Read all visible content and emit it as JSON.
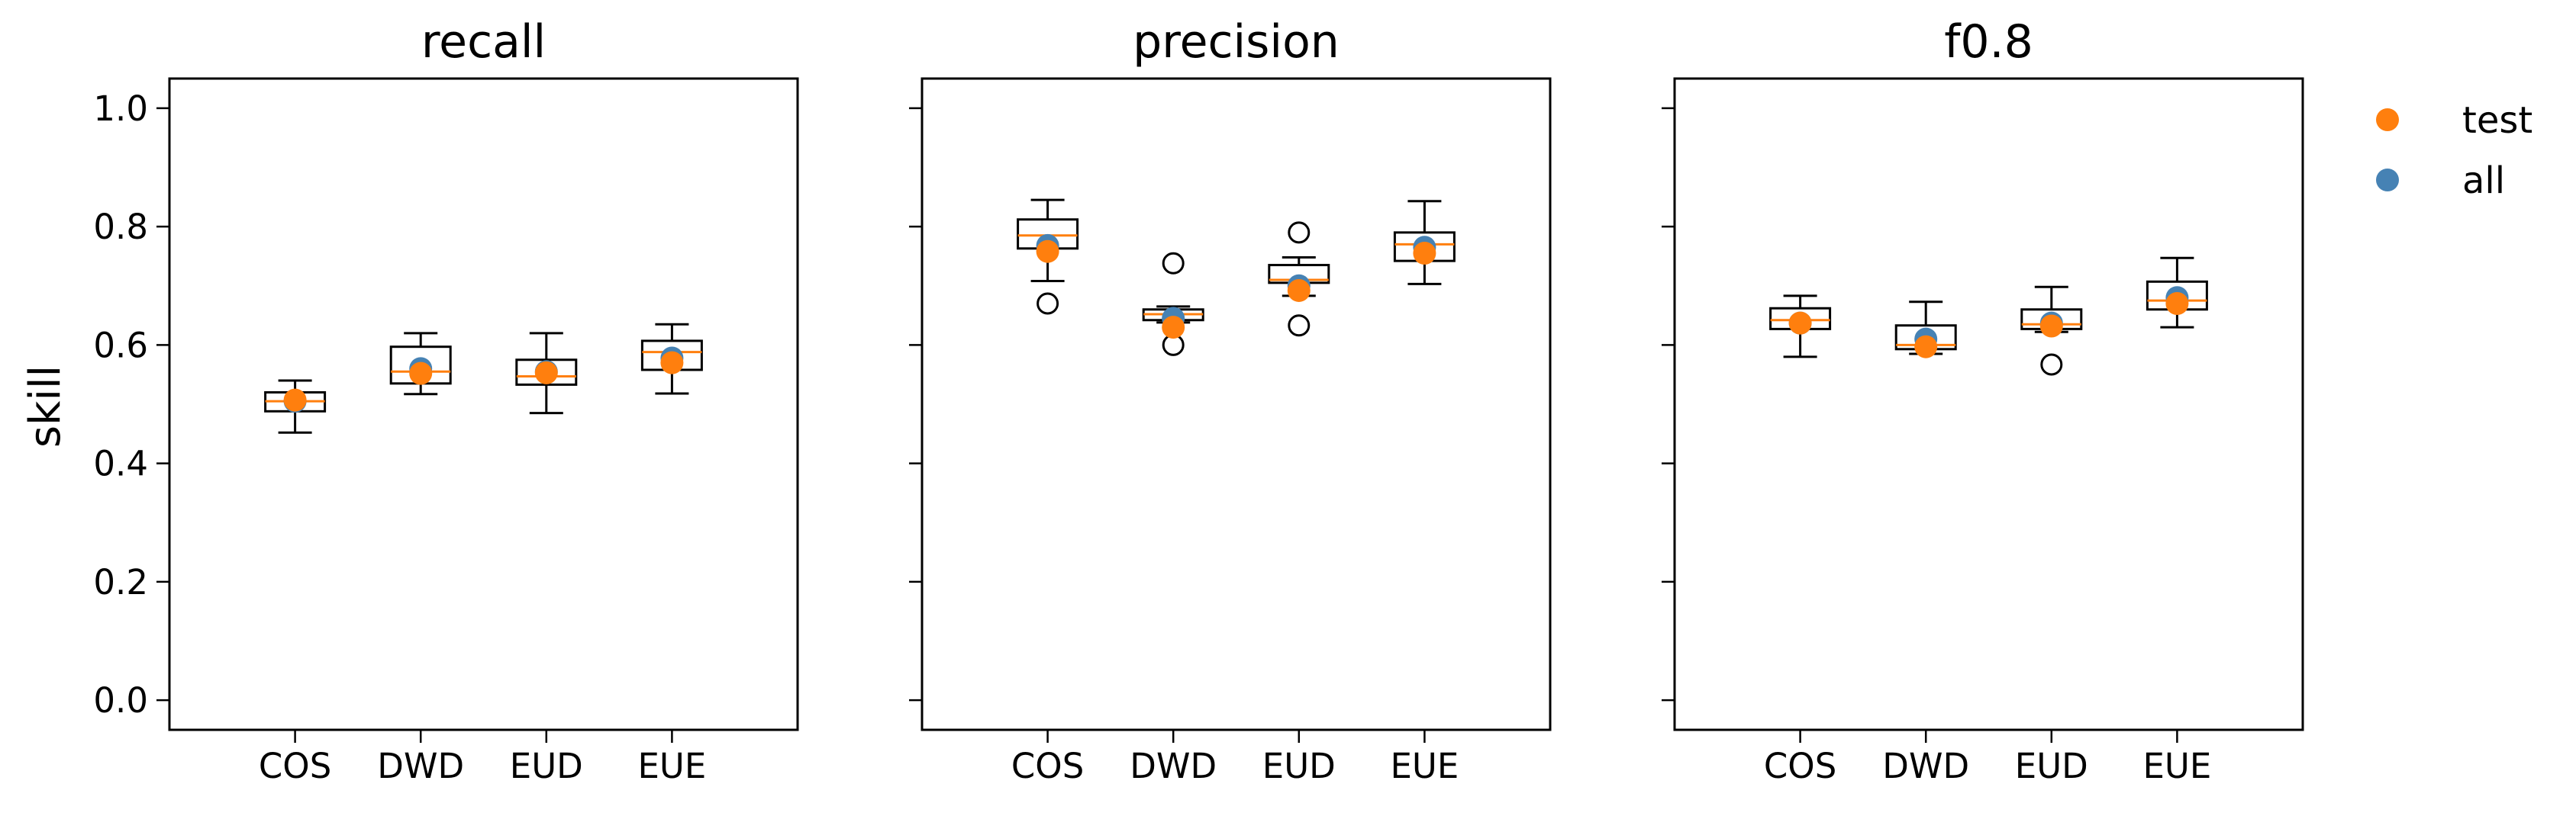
{
  "chart_data": {
    "type": "box",
    "ylabel": "skill",
    "ylim": [
      -0.05,
      1.05
    ],
    "yticks": [
      0.0,
      0.2,
      0.4,
      0.6,
      0.8,
      1.0
    ],
    "ytick_labels": [
      "0.0",
      "0.2",
      "0.4",
      "0.6",
      "0.8",
      "1.0"
    ],
    "categories": [
      "COS",
      "DWD",
      "EUD",
      "EUE"
    ],
    "shared_y": true,
    "colors": {
      "test": "#ff7f0e",
      "all": "#4682b4",
      "median": "#ff7f0e",
      "box": "#000000"
    },
    "legend": {
      "position": "outside-right",
      "entries": [
        {
          "label": "test",
          "color": "#ff7f0e"
        },
        {
          "label": "all",
          "color": "#4682b4"
        }
      ]
    },
    "panels": [
      {
        "title": "recall",
        "boxes": [
          {
            "category": "COS",
            "whisker_low": 0.452,
            "q1": 0.488,
            "median": 0.505,
            "q3": 0.52,
            "whisker_high": 0.54,
            "outliers": [],
            "all": 0.505,
            "test": 0.507
          },
          {
            "category": "DWD",
            "whisker_low": 0.517,
            "q1": 0.535,
            "median": 0.555,
            "q3": 0.597,
            "whisker_high": 0.62,
            "outliers": [],
            "all": 0.56,
            "test": 0.552
          },
          {
            "category": "EUD",
            "whisker_low": 0.485,
            "q1": 0.533,
            "median": 0.547,
            "q3": 0.575,
            "whisker_high": 0.62,
            "outliers": [],
            "all": 0.555,
            "test": 0.553
          },
          {
            "category": "EUE",
            "whisker_low": 0.518,
            "q1": 0.558,
            "median": 0.588,
            "q3": 0.607,
            "whisker_high": 0.635,
            "outliers": [],
            "all": 0.578,
            "test": 0.57
          }
        ]
      },
      {
        "title": "precision",
        "boxes": [
          {
            "category": "COS",
            "whisker_low": 0.708,
            "q1": 0.763,
            "median": 0.785,
            "q3": 0.812,
            "whisker_high": 0.845,
            "outliers": [
              0.67
            ],
            "all": 0.768,
            "test": 0.758
          },
          {
            "category": "DWD",
            "whisker_low": 0.638,
            "q1": 0.642,
            "median": 0.652,
            "q3": 0.66,
            "whisker_high": 0.665,
            "outliers": [
              0.738,
              0.6
            ],
            "all": 0.645,
            "test": 0.63
          },
          {
            "category": "EUD",
            "whisker_low": 0.683,
            "q1": 0.705,
            "median": 0.71,
            "q3": 0.735,
            "whisker_high": 0.748,
            "outliers": [
              0.79,
              0.633
            ],
            "all": 0.7,
            "test": 0.692
          },
          {
            "category": "EUE",
            "whisker_low": 0.703,
            "q1": 0.742,
            "median": 0.77,
            "q3": 0.79,
            "whisker_high": 0.843,
            "outliers": [],
            "all": 0.765,
            "test": 0.755
          }
        ]
      },
      {
        "title": "f0.8",
        "boxes": [
          {
            "category": "COS",
            "whisker_low": 0.58,
            "q1": 0.627,
            "median": 0.642,
            "q3": 0.662,
            "whisker_high": 0.683,
            "outliers": [],
            "all": 0.637,
            "test": 0.637
          },
          {
            "category": "DWD",
            "whisker_low": 0.585,
            "q1": 0.593,
            "median": 0.6,
            "q3": 0.633,
            "whisker_high": 0.673,
            "outliers": [],
            "all": 0.61,
            "test": 0.597
          },
          {
            "category": "EUD",
            "whisker_low": 0.622,
            "q1": 0.627,
            "median": 0.635,
            "q3": 0.66,
            "whisker_high": 0.698,
            "outliers": [
              0.567
            ],
            "all": 0.637,
            "test": 0.632
          },
          {
            "category": "EUE",
            "whisker_low": 0.63,
            "q1": 0.66,
            "median": 0.675,
            "q3": 0.707,
            "whisker_high": 0.747,
            "outliers": [],
            "all": 0.68,
            "test": 0.67
          }
        ]
      }
    ]
  }
}
